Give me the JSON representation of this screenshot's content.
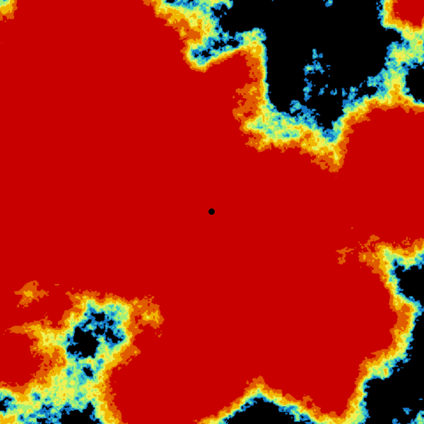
{
  "image": {
    "kind": "weather radar reflectivity",
    "background_color": "#000000",
    "palette": [
      "#0a3a8c",
      "#1478c8",
      "#3cc8c8",
      "#a0f078",
      "#f0f050",
      "#f0b400",
      "#e05a00",
      "#c80000"
    ],
    "center_marker_color": "#000000"
  }
}
